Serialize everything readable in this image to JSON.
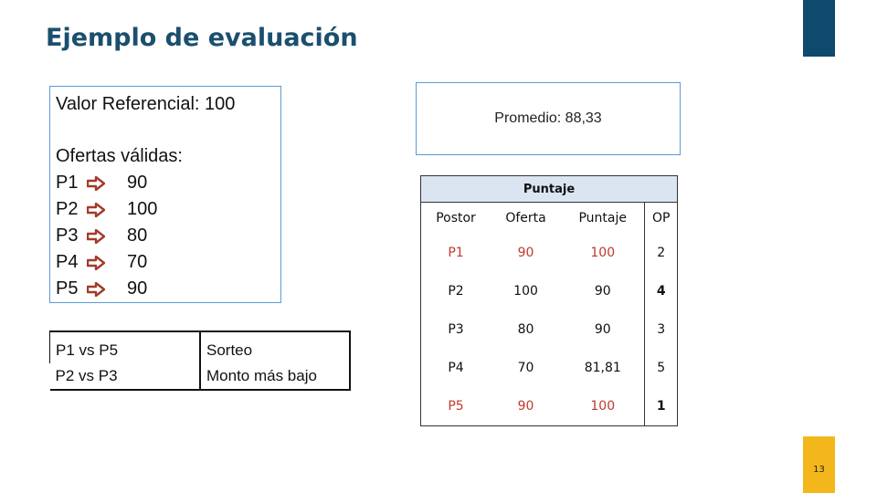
{
  "slide": {
    "title": "Ejemplo de evaluación",
    "slide_number": "13",
    "colors": {
      "title": "#1b4f6e",
      "accent_top": "#0e4a6b",
      "accent_bottom": "#f4b71b",
      "arrow": "#a23b2b",
      "highlight_text": "#c0392b"
    }
  },
  "left_box": {
    "valor_referencial": "Valor Referencial: 100",
    "ofertas_label": "Ofertas válidas:",
    "arrow_icon": "arrow-right-icon",
    "offers": [
      {
        "postor": "P1",
        "oferta": "90"
      },
      {
        "postor": "P2",
        "oferta": "100"
      },
      {
        "postor": "P3",
        "oferta": "80"
      },
      {
        "postor": "P4",
        "oferta": "70"
      },
      {
        "postor": "P5",
        "oferta": "90"
      }
    ]
  },
  "right_box": {
    "promedio": "Promedio: 88,33"
  },
  "comparisons": [
    {
      "pair": "P1 vs P5",
      "criterio": "Sorteo"
    },
    {
      "pair": "P2 vs P3",
      "criterio": "Monto más bajo"
    }
  ],
  "score_table": {
    "title": "Puntaje",
    "headers": [
      "Postor",
      "Oferta",
      "Puntaje",
      "OP"
    ],
    "rows": [
      {
        "postor": "P1",
        "oferta": "90",
        "puntaje": "100",
        "op": "2"
      },
      {
        "postor": "P2",
        "oferta": "100",
        "puntaje": "90",
        "op": "4"
      },
      {
        "postor": "P3",
        "oferta": "80",
        "puntaje": "90",
        "op": "3"
      },
      {
        "postor": "P4",
        "oferta": "70",
        "puntaje": "81,81",
        "op": "5"
      },
      {
        "postor": "P5",
        "oferta": "90",
        "puntaje": "100",
        "op": "1"
      }
    ]
  }
}
